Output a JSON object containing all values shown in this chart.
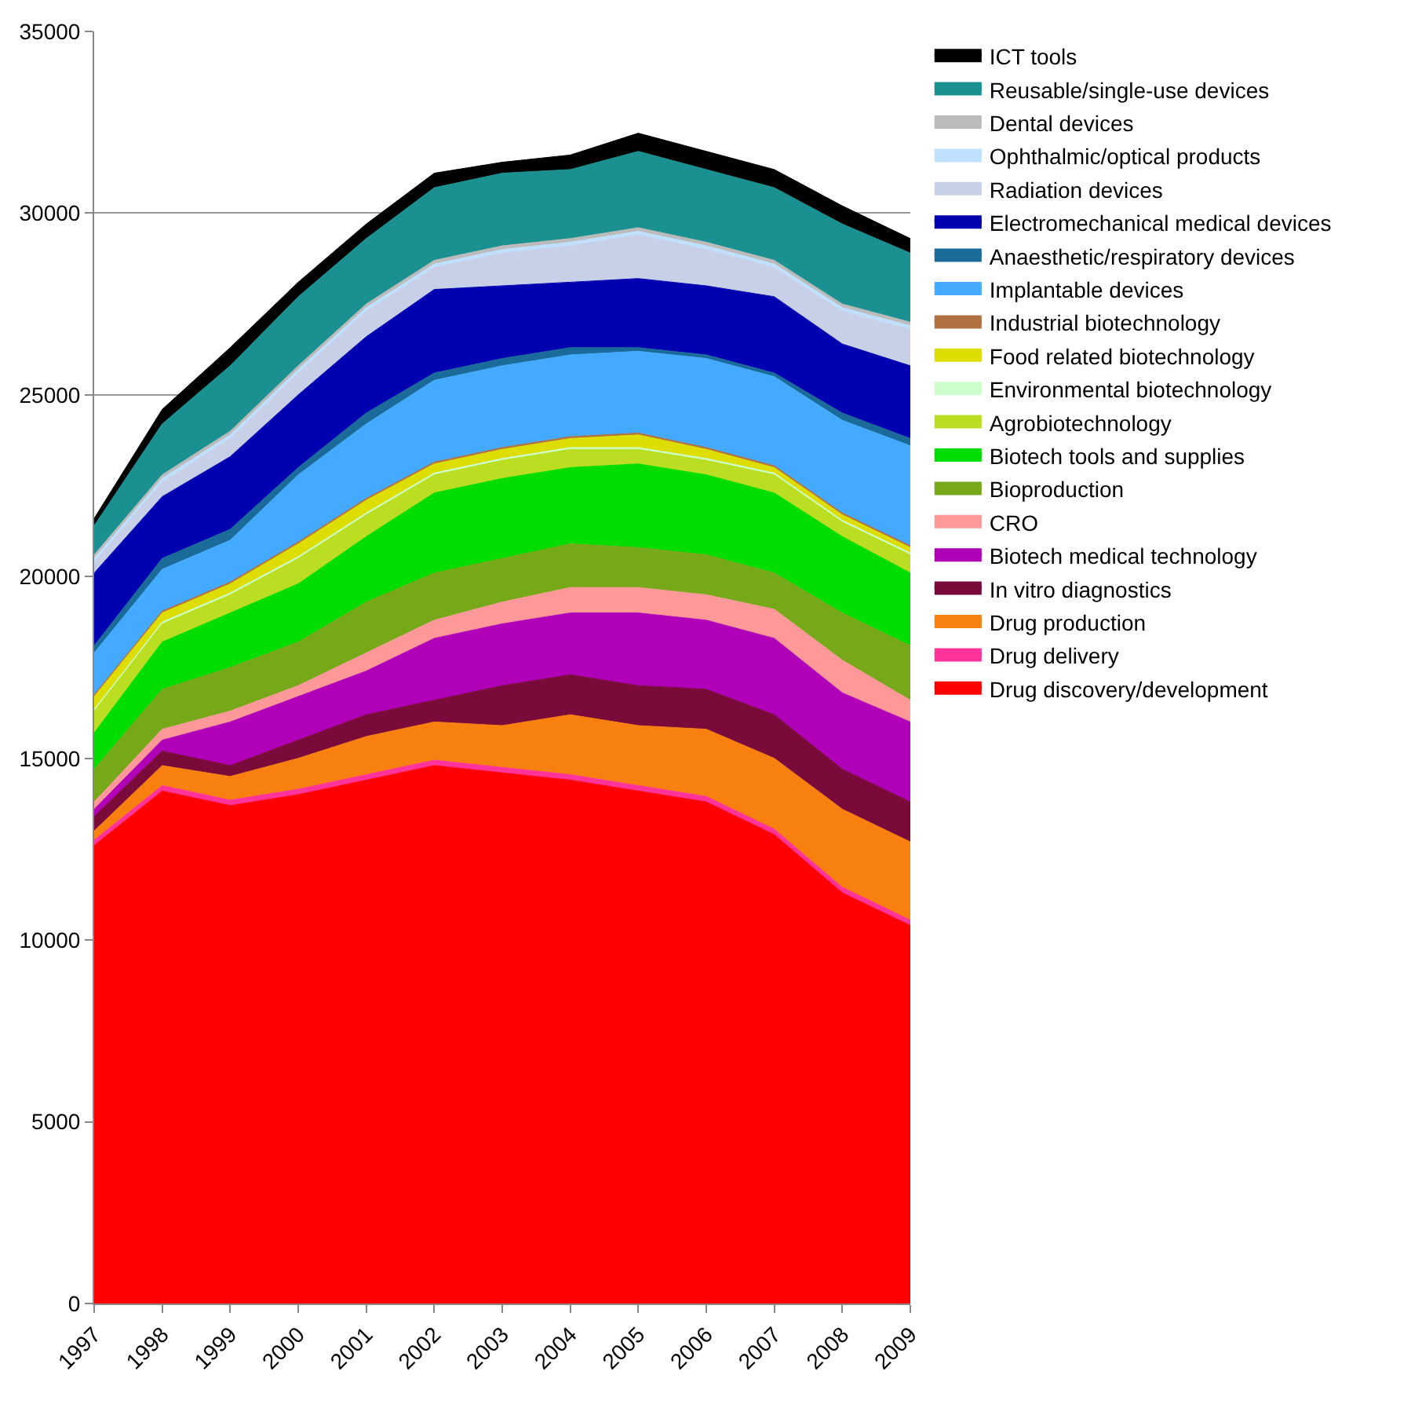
{
  "chart_data": {
    "type": "area",
    "stacked": true,
    "legend": "right",
    "grid": "y",
    "categories": [
      "1997",
      "1998",
      "1999",
      "2000",
      "2001",
      "2002",
      "2003",
      "2004",
      "2005",
      "2006",
      "2007",
      "2008",
      "2009"
    ],
    "ylim": [
      0,
      35000
    ],
    "yticks": [
      0,
      5000,
      10000,
      15000,
      20000,
      25000,
      30000,
      35000
    ],
    "series": [
      {
        "name": "Drug discovery/development",
        "color": "#ff0000",
        "values": [
          12600,
          14100,
          13700,
          14000,
          14400,
          14800,
          14600,
          14400,
          14100,
          13800,
          12900,
          11300,
          10400
        ]
      },
      {
        "name": "Drug delivery",
        "color": "#ff3399",
        "values": [
          150,
          150,
          150,
          150,
          150,
          150,
          150,
          150,
          150,
          150,
          150,
          150,
          150
        ]
      },
      {
        "name": "Drug production",
        "color": "#f7800f",
        "values": [
          250,
          550,
          650,
          850,
          1050,
          1050,
          1150,
          1650,
          1650,
          1850,
          1950,
          2150,
          2150
        ]
      },
      {
        "name": "In vitro diagnostics",
        "color": "#7a0a3a",
        "values": [
          400,
          400,
          300,
          500,
          600,
          600,
          1100,
          1100,
          1100,
          1100,
          1200,
          1100,
          1100
        ]
      },
      {
        "name": "Biotech medical technology",
        "color": "#b000b8",
        "values": [
          200,
          300,
          1200,
          1200,
          1200,
          1700,
          1700,
          1700,
          2000,
          1900,
          2100,
          2100,
          2200
        ]
      },
      {
        "name": "CRO",
        "color": "#ff9999",
        "values": [
          200,
          300,
          300,
          300,
          500,
          500,
          600,
          700,
          700,
          700,
          800,
          900,
          600
        ]
      },
      {
        "name": "Bioproduction",
        "color": "#77a81a",
        "values": [
          900,
          1100,
          1200,
          1200,
          1400,
          1300,
          1200,
          1200,
          1100,
          1100,
          1000,
          1300,
          1500
        ]
      },
      {
        "name": "Biotech tools and supplies",
        "color": "#00dd00",
        "values": [
          1000,
          1300,
          1500,
          1600,
          1800,
          2200,
          2200,
          2100,
          2300,
          2200,
          2200,
          2100,
          2000
        ]
      },
      {
        "name": "Agrobiotechnology",
        "color": "#bbdd22",
        "values": [
          600,
          500,
          500,
          700,
          600,
          500,
          500,
          500,
          400,
          400,
          500,
          400,
          500
        ]
      },
      {
        "name": "Environmental biotechnology",
        "color": "#ccffcc",
        "values": [
          50,
          50,
          50,
          50,
          50,
          50,
          50,
          50,
          50,
          50,
          50,
          50,
          50
        ]
      },
      {
        "name": "Food related biotechnology",
        "color": "#dddd00",
        "values": [
          350,
          250,
          250,
          350,
          350,
          250,
          250,
          250,
          350,
          250,
          150,
          150,
          150
        ]
      },
      {
        "name": "Industrial biotechnology",
        "color": "#b07040",
        "values": [
          50,
          50,
          50,
          50,
          50,
          50,
          50,
          50,
          50,
          50,
          50,
          50,
          50
        ]
      },
      {
        "name": "Implantable devices",
        "color": "#44aaff",
        "values": [
          1150,
          1150,
          1150,
          1850,
          2050,
          2250,
          2250,
          2250,
          2250,
          2450,
          2450,
          2550,
          2750
        ]
      },
      {
        "name": "Anaesthetic/respiratory devices",
        "color": "#1a6a9a",
        "values": [
          200,
          300,
          300,
          200,
          300,
          200,
          200,
          200,
          100,
          100,
          100,
          200,
          200
        ]
      },
      {
        "name": "Electromechanical medical devices",
        "color": "#0000b0",
        "values": [
          2000,
          1700,
          2000,
          2000,
          2100,
          2300,
          2000,
          1800,
          1900,
          1900,
          2100,
          1900,
          2000
        ]
      },
      {
        "name": "Radiation devices",
        "color": "#c8d0e8",
        "values": [
          300,
          400,
          500,
          600,
          700,
          600,
          900,
          1000,
          1200,
          1000,
          800,
          900,
          1000
        ]
      },
      {
        "name": "Ophthalmic/optical products",
        "color": "#bfe0ff",
        "values": [
          100,
          100,
          100,
          100,
          100,
          100,
          100,
          100,
          100,
          100,
          100,
          100,
          100
        ]
      },
      {
        "name": "Dental devices",
        "color": "#bbbbbb",
        "values": [
          100,
          100,
          100,
          100,
          100,
          100,
          100,
          100,
          100,
          100,
          100,
          100,
          100
        ]
      },
      {
        "name": "Reusable/single-use devices",
        "color": "#1a9090",
        "values": [
          800,
          1400,
          1800,
          1900,
          1800,
          2000,
          2000,
          1900,
          2100,
          2000,
          2000,
          2200,
          1900
        ]
      },
      {
        "name": "ICT tools",
        "color": "#000000",
        "values": [
          200,
          400,
          500,
          400,
          400,
          400,
          300,
          400,
          500,
          500,
          500,
          500,
          400
        ]
      }
    ]
  }
}
